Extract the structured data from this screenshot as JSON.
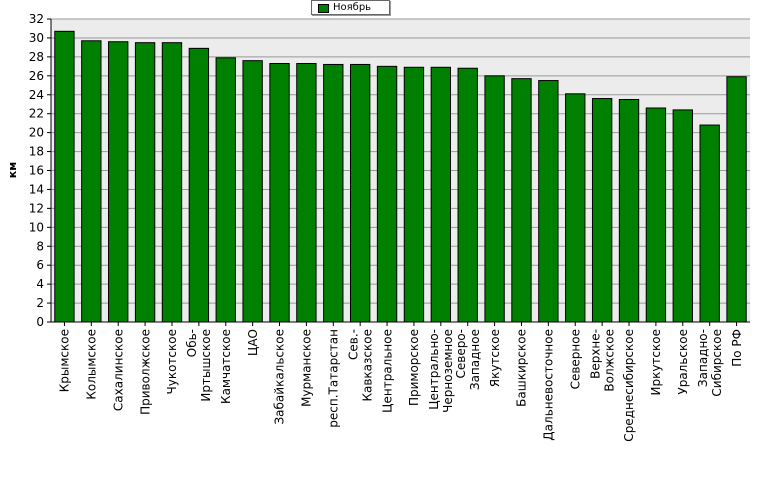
{
  "chart_data": {
    "type": "bar",
    "ylabel": "км",
    "ylim": [
      0,
      32
    ],
    "ytick_step": 2,
    "grid": true,
    "legend": "top-center",
    "colors": {
      "bar": "#008000",
      "plot_bg": "#ececec",
      "grid": "#999999"
    },
    "series": [
      {
        "name": "Ноябрь",
        "values": [
          30.7,
          29.7,
          29.6,
          29.5,
          29.5,
          28.9,
          27.9,
          27.6,
          27.3,
          27.3,
          27.2,
          27.2,
          27.0,
          26.9,
          26.9,
          26.8,
          26.0,
          25.7,
          25.5,
          24.1,
          23.6,
          23.5,
          22.6,
          22.4,
          20.8,
          25.9
        ]
      }
    ],
    "categories": [
      [
        "Крымское"
      ],
      [
        "Колымское"
      ],
      [
        "Сахалинское"
      ],
      [
        "Приволжское"
      ],
      [
        "Чукотское"
      ],
      [
        "Обь-",
        "Иртышское"
      ],
      [
        "Камчатское"
      ],
      [
        "ЦАО"
      ],
      [
        "Забайкальское"
      ],
      [
        "Мурманское"
      ],
      [
        "респ.Татарстан"
      ],
      [
        "Сев.-",
        "Кавказское"
      ],
      [
        "Центральное"
      ],
      [
        "Приморское"
      ],
      [
        "Центрально-",
        "Черноземное"
      ],
      [
        "Северо-",
        "Западное"
      ],
      [
        "Якутское"
      ],
      [
        "Башкирское"
      ],
      [
        "Дальневосточное"
      ],
      [
        "Северное"
      ],
      [
        "Верхне-",
        "Волжское"
      ],
      [
        "Среднесибирское"
      ],
      [
        "Иркутское"
      ],
      [
        "Уральское"
      ],
      [
        "Западно-",
        "Сибирское"
      ],
      [
        "По РФ"
      ]
    ]
  }
}
